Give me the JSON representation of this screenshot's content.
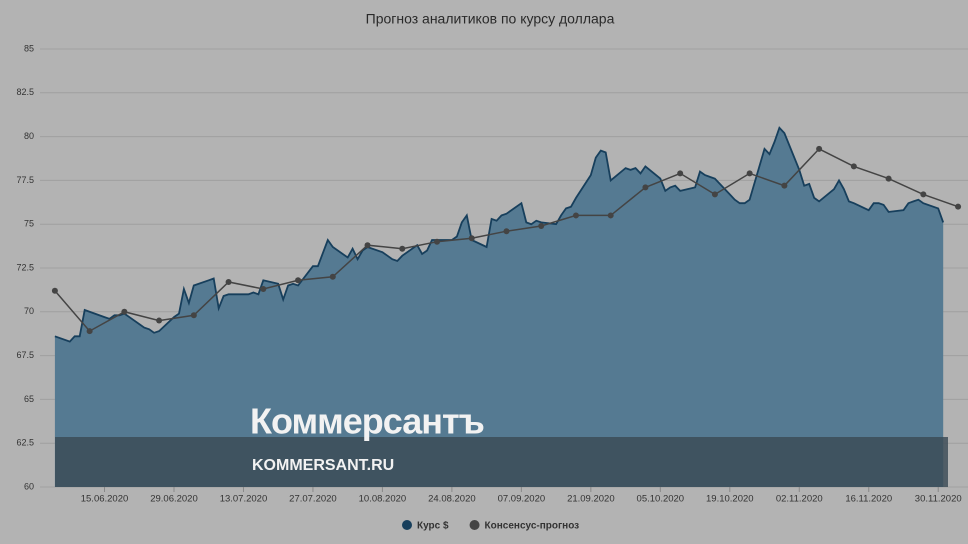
{
  "chart_data": {
    "type": "area-line",
    "title": "Прогноз аналитиков по курсу доллара",
    "xlim": [
      "02.06.2020",
      "06.12.2020"
    ],
    "xticks": [
      "15.06.2020",
      "29.06.2020",
      "13.07.2020",
      "27.07.2020",
      "10.08.2020",
      "24.08.2020",
      "07.09.2020",
      "21.09.2020",
      "05.10.2020",
      "19.10.2020",
      "02.11.2020",
      "16.11.2020",
      "30.11.2020"
    ],
    "ylim": [
      60,
      85
    ],
    "yticks": [
      60,
      62.5,
      65,
      67.5,
      70,
      72.5,
      75,
      77.5,
      80,
      82.5,
      85
    ],
    "grid": true,
    "series": [
      {
        "name": "Курс $",
        "kind": "area",
        "color": "#557a92",
        "line_color": "#173f5c",
        "x": [
          "05.06.2020",
          "08.06.2020",
          "09.06.2020",
          "10.06.2020",
          "11.06.2020",
          "15.06.2020",
          "16.06.2020",
          "17.06.2020",
          "18.06.2020",
          "19.06.2020",
          "22.06.2020",
          "23.06.2020",
          "24.06.2020",
          "25.06.2020",
          "26.06.2020",
          "29.06.2020",
          "30.06.2020",
          "01.07.2020",
          "02.07.2020",
          "03.07.2020",
          "06.07.2020",
          "07.07.2020",
          "08.07.2020",
          "09.07.2020",
          "10.07.2020",
          "13.07.2020",
          "14.07.2020",
          "15.07.2020",
          "16.07.2020",
          "17.07.2020",
          "20.07.2020",
          "21.07.2020",
          "22.07.2020",
          "23.07.2020",
          "24.07.2020",
          "27.07.2020",
          "28.07.2020",
          "30.07.2020",
          "31.07.2020",
          "03.08.2020",
          "04.08.2020",
          "05.08.2020",
          "06.08.2020",
          "07.08.2020",
          "10.08.2020",
          "11.08.2020",
          "12.08.2020",
          "13.08.2020",
          "14.08.2020",
          "17.08.2020",
          "18.08.2020",
          "19.08.2020",
          "20.08.2020",
          "21.08.2020",
          "24.08.2020",
          "25.08.2020",
          "26.08.2020",
          "27.08.2020",
          "28.08.2020",
          "31.08.2020",
          "01.09.2020",
          "02.09.2020",
          "03.09.2020",
          "04.09.2020",
          "07.09.2020",
          "08.09.2020",
          "09.09.2020",
          "10.09.2020",
          "11.09.2020",
          "14.09.2020",
          "15.09.2020",
          "16.09.2020",
          "17.09.2020",
          "18.09.2020",
          "21.09.2020",
          "22.09.2020",
          "23.09.2020",
          "24.09.2020",
          "25.09.2020",
          "28.09.2020",
          "29.09.2020",
          "30.09.2020",
          "01.10.2020",
          "02.10.2020",
          "05.10.2020",
          "06.10.2020",
          "07.10.2020",
          "08.10.2020",
          "09.10.2020",
          "12.10.2020",
          "13.10.2020",
          "14.10.2020",
          "15.10.2020",
          "16.10.2020",
          "19.10.2020",
          "20.10.2020",
          "21.10.2020",
          "22.10.2020",
          "23.10.2020",
          "26.10.2020",
          "27.10.2020",
          "28.10.2020",
          "29.10.2020",
          "30.10.2020",
          "02.11.2020",
          "03.11.2020",
          "04.11.2020",
          "05.11.2020",
          "06.11.2020",
          "09.11.2020",
          "10.11.2020",
          "11.11.2020",
          "12.11.2020",
          "13.11.2020",
          "16.11.2020",
          "17.11.2020",
          "18.11.2020",
          "19.11.2020",
          "20.11.2020",
          "23.11.2020",
          "24.11.2020",
          "25.11.2020",
          "26.11.2020",
          "27.11.2020",
          "30.11.2020",
          "01.12.2020"
        ],
        "values": [
          68.6,
          68.3,
          68.6,
          68.6,
          70.1,
          69.7,
          69.6,
          69.8,
          69.8,
          69.9,
          69.3,
          69.1,
          69.0,
          68.8,
          68.9,
          69.7,
          69.9,
          71.3,
          70.5,
          71.5,
          71.8,
          71.9,
          70.2,
          70.9,
          71.0,
          71.0,
          71.0,
          71.1,
          71.0,
          71.8,
          71.6,
          70.7,
          71.5,
          71.6,
          71.5,
          72.6,
          72.6,
          74.1,
          73.7,
          73.1,
          73.6,
          73.0,
          73.5,
          73.7,
          73.4,
          73.2,
          73.0,
          72.9,
          73.2,
          73.8,
          73.3,
          73.5,
          74.1,
          74.1,
          74.1,
          74.3,
          75.1,
          75.5,
          74.1,
          73.7,
          75.3,
          75.2,
          75.5,
          75.6,
          76.2,
          75.1,
          75.0,
          75.2,
          75.1,
          75.0,
          75.5,
          75.9,
          76.0,
          76.5,
          77.8,
          78.8,
          79.2,
          79.1,
          77.5,
          78.2,
          78.1,
          78.2,
          77.9,
          78.3,
          77.6,
          76.9,
          77.1,
          77.2,
          76.9,
          77.1,
          78.0,
          77.8,
          77.7,
          77.6,
          76.7,
          76.4,
          76.2,
          76.2,
          76.4,
          79.3,
          79.0,
          79.7,
          80.5,
          80.2,
          78.1,
          77.2,
          77.3,
          76.5,
          76.3,
          77.0,
          77.5,
          77.0,
          76.3,
          76.2,
          75.8,
          76.2,
          76.2,
          76.1,
          75.7,
          75.8,
          76.2,
          76.3,
          76.4,
          76.2,
          75.9,
          75.1
        ]
      },
      {
        "name": "Консенсус-прогноз",
        "kind": "line",
        "color": "#444444",
        "x": [
          "05.06.2020",
          "12.06.2020",
          "19.06.2020",
          "26.06.2020",
          "03.07.2020",
          "10.07.2020",
          "17.07.2020",
          "24.07.2020",
          "31.07.2020",
          "07.08.2020",
          "14.08.2020",
          "21.08.2020",
          "28.08.2020",
          "04.09.2020",
          "11.09.2020",
          "18.09.2020",
          "25.09.2020",
          "02.10.2020",
          "09.10.2020",
          "16.10.2020",
          "23.10.2020",
          "30.10.2020",
          "06.11.2020",
          "13.11.2020",
          "20.11.2020",
          "27.11.2020",
          "04.12.2020"
        ],
        "values": [
          71.2,
          68.9,
          70.0,
          69.5,
          69.8,
          71.7,
          71.3,
          71.8,
          72.0,
          73.8,
          73.6,
          74.0,
          74.2,
          74.6,
          74.9,
          75.5,
          75.5,
          77.1,
          77.9,
          76.7,
          77.9,
          77.2,
          79.3,
          78.3,
          77.6,
          76.7,
          76.0
        ]
      }
    ],
    "watermark": {
      "brand": "Коммерсантъ",
      "site": "KOMMERSANT.RU"
    }
  }
}
